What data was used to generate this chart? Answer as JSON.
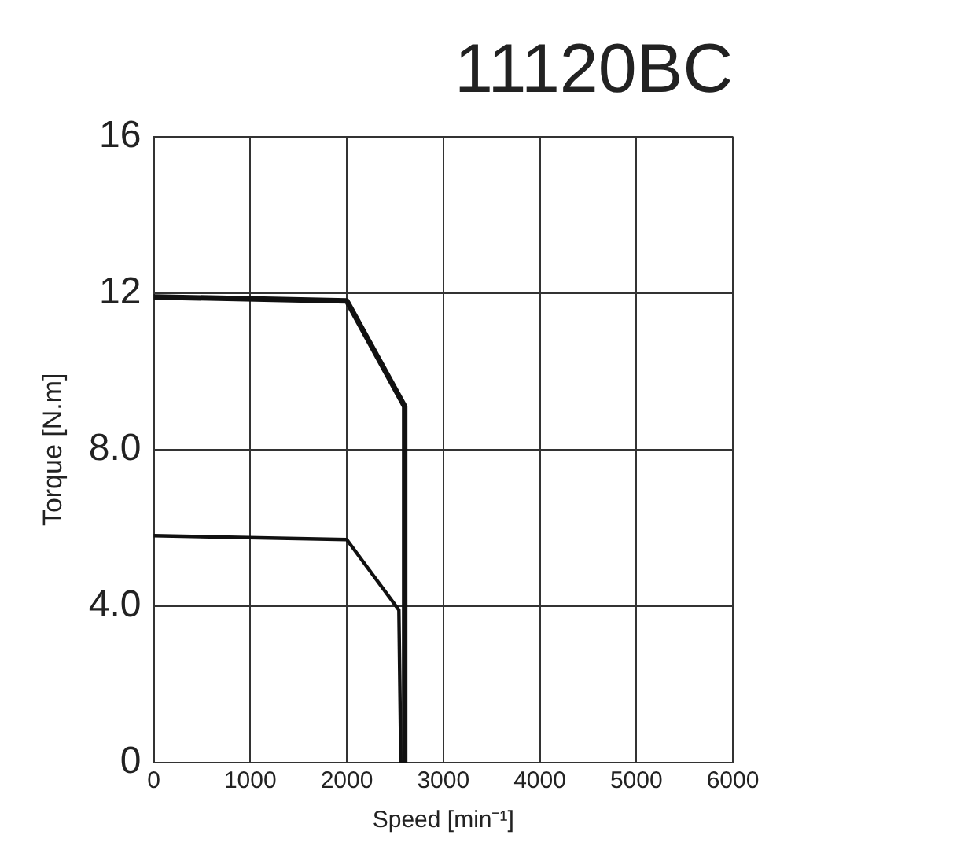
{
  "chart_data": {
    "type": "line",
    "title": "11120BC",
    "xlabel": "Speed [min⁻¹]",
    "ylabel": "Torque [N.m]",
    "xlim": [
      0,
      6000
    ],
    "xticks": [
      0,
      1000,
      2000,
      3000,
      4000,
      5000,
      6000
    ],
    "ylim": [
      0,
      16
    ],
    "yticks": [
      0,
      {
        "value": 4,
        "label": "4.0"
      },
      {
        "value": 8,
        "label": "8.0"
      },
      12,
      16
    ],
    "grid": true,
    "legend": false,
    "marker": "none",
    "line_style": "solid",
    "series": [
      {
        "color": "#111111",
        "x": [
          0,
          2000,
          2600,
          2600
        ],
        "values": [
          11.9,
          11.8,
          9.1,
          0
        ]
      },
      {
        "color": "#111111",
        "x": [
          0,
          2000,
          2540,
          2560
        ],
        "values": [
          5.8,
          5.7,
          3.9,
          0
        ]
      }
    ]
  }
}
